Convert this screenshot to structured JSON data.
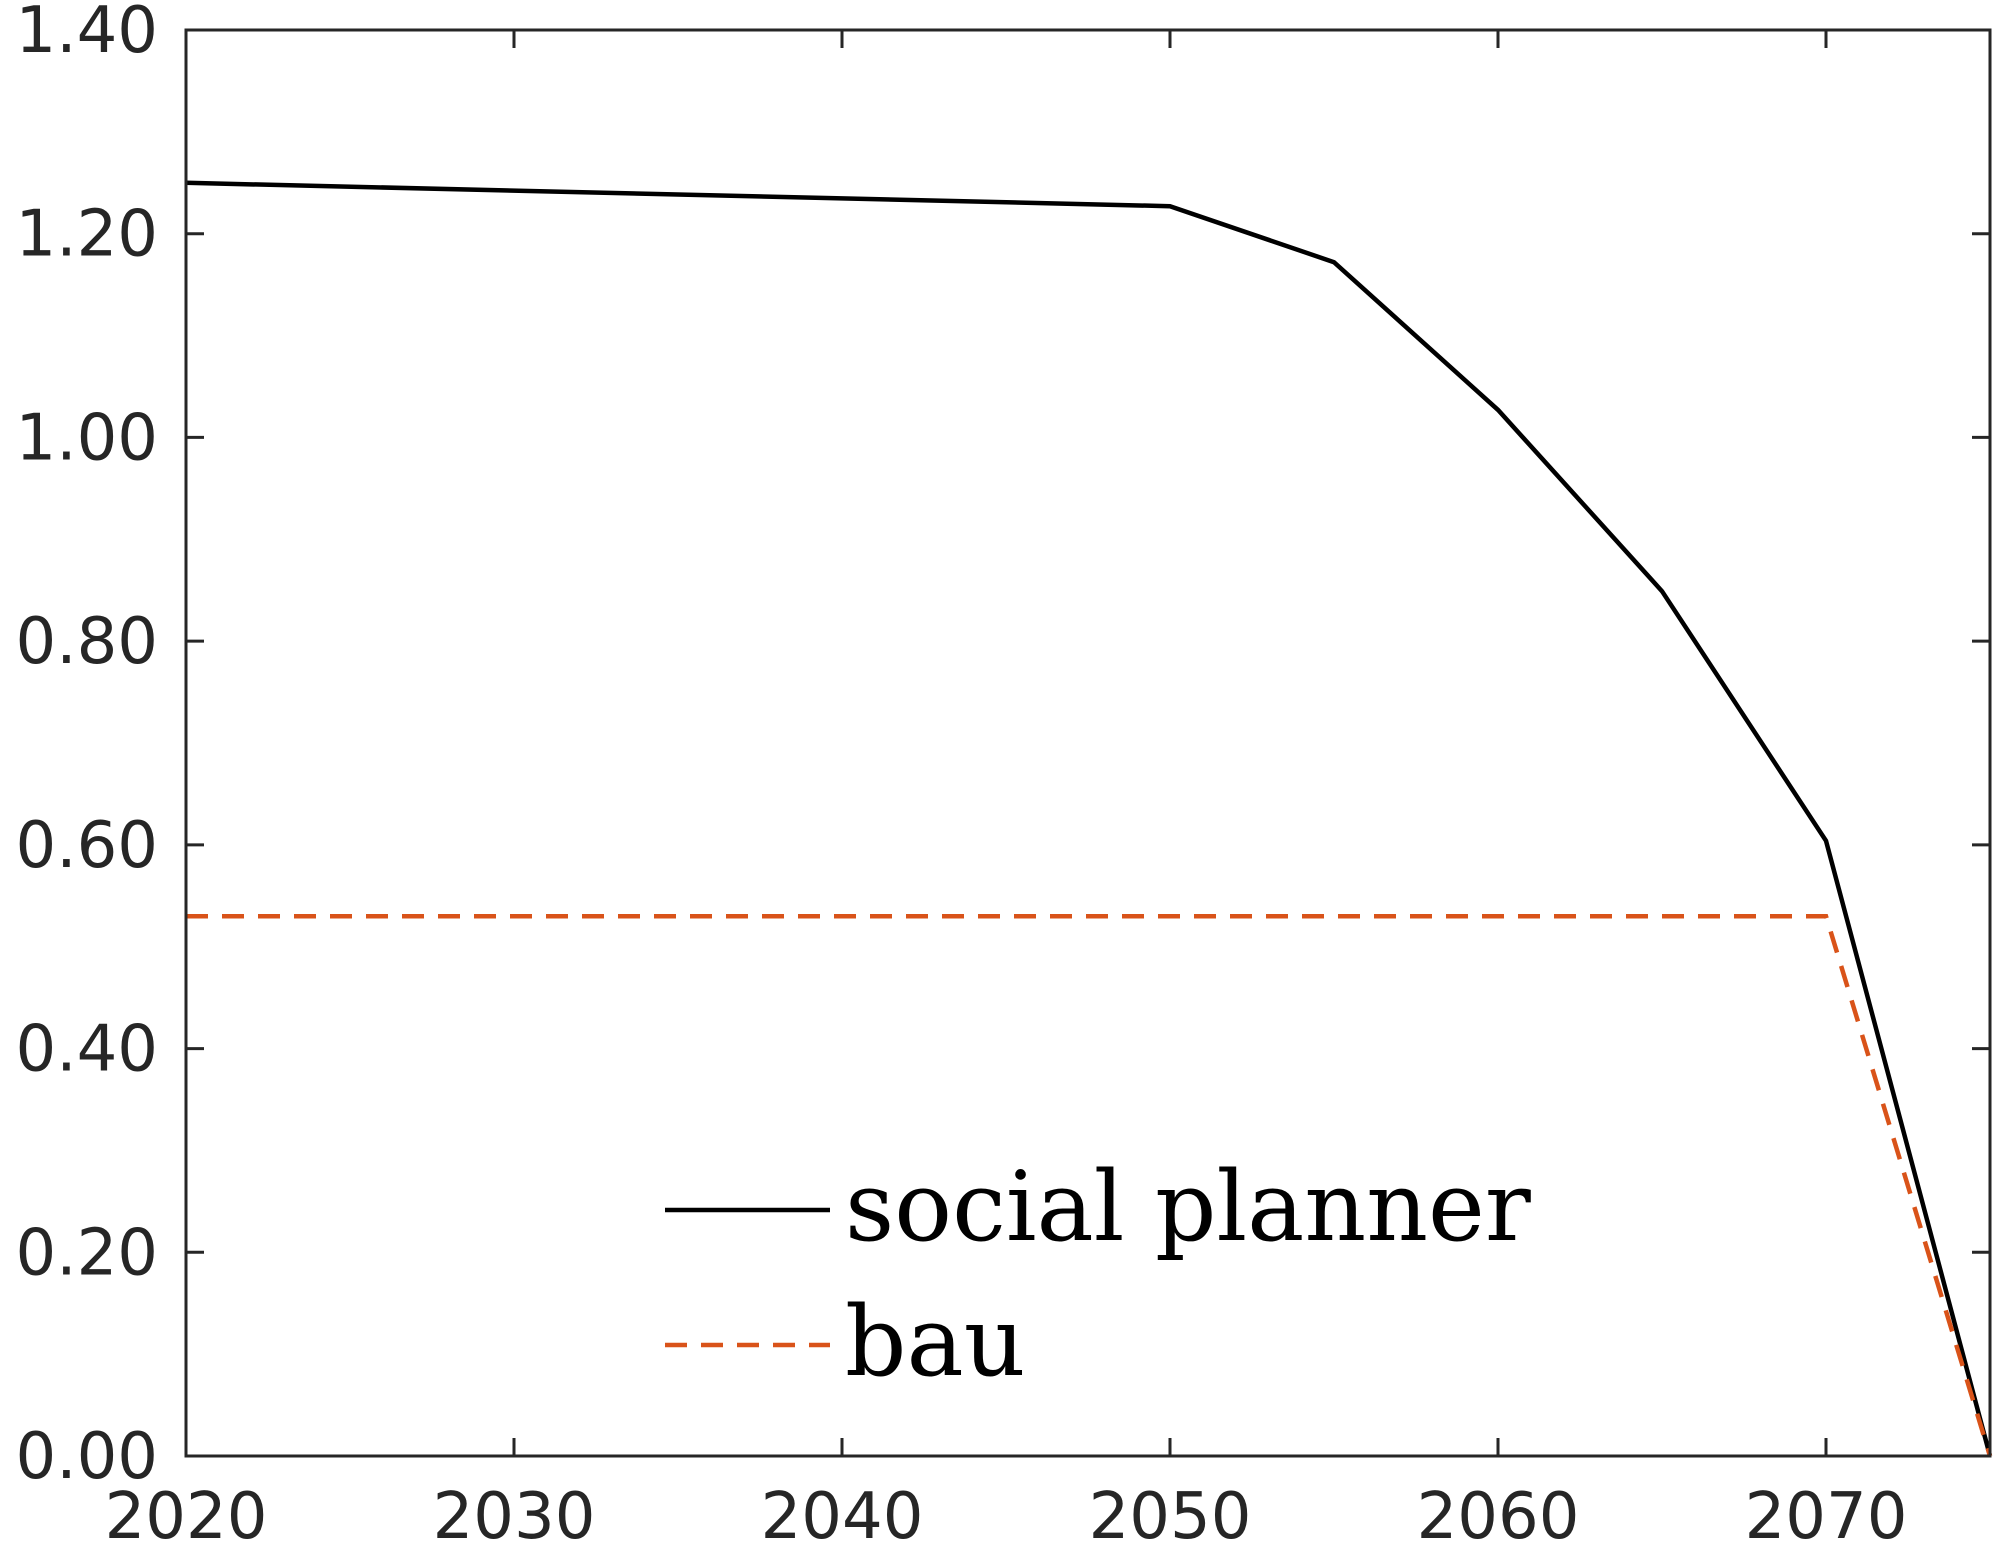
{
  "chart_data": {
    "type": "line",
    "title": "",
    "xlabel": "",
    "ylabel": "",
    "xlim": [
      2020,
      2075
    ],
    "ylim": [
      0,
      1.4
    ],
    "x_ticks": [
      2020,
      2030,
      2040,
      2050,
      2060,
      2070
    ],
    "y_ticks": [
      0.0,
      0.2,
      0.4,
      0.6,
      0.8,
      1.0,
      1.2,
      1.4
    ],
    "y_tick_labels": [
      "0.00",
      "0.20",
      "0.40",
      "0.60",
      "0.80",
      "1.00",
      "1.20",
      "1.40"
    ],
    "grid": false,
    "legend_position": "bottom-center",
    "series": [
      {
        "name": "social planner",
        "style": "solid",
        "color": "#000000",
        "x": [
          2020,
          2050,
          2055,
          2060,
          2065,
          2070,
          2075
        ],
        "y": [
          1.25,
          1.227,
          1.172,
          1.027,
          0.849,
          0.604,
          0.0
        ]
      },
      {
        "name": "bau",
        "style": "dashed",
        "color": "#d95319",
        "x": [
          2020,
          2070,
          2075
        ],
        "y": [
          0.53,
          0.53,
          0.0
        ]
      }
    ]
  }
}
